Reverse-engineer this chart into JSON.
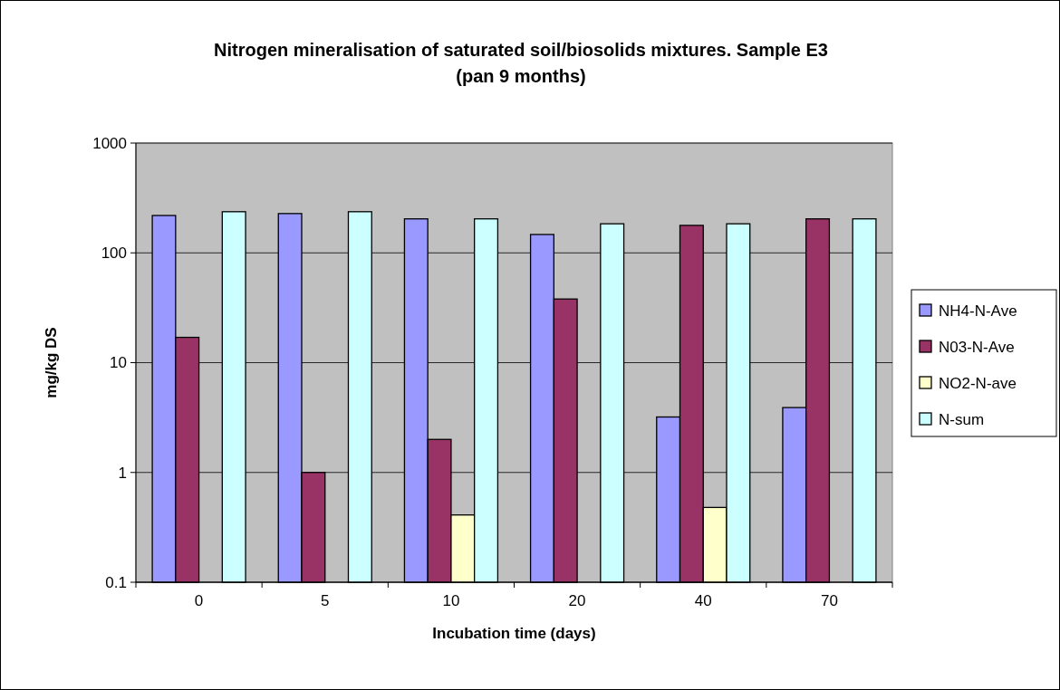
{
  "chart_data": {
    "type": "bar",
    "title": "Nitrogen mineralisation of saturated soil/biosolids mixtures. Sample E3 (pan 9 months)",
    "xlabel": "Incubation time (days)",
    "ylabel": "mg/kg DS",
    "categories": [
      "0",
      "5",
      "10",
      "20",
      "40",
      "70"
    ],
    "series": [
      {
        "name": "NH4-N-Ave",
        "color": "#9999ff",
        "values": [
          219,
          228,
          204,
          147,
          3.2,
          3.9
        ]
      },
      {
        "name": "N03-N-Ave",
        "color": "#993366",
        "values": [
          17,
          1.0,
          2.0,
          38,
          178,
          204
        ]
      },
      {
        "name": "NO2-N-ave",
        "color": "#ffffcc",
        "values": [
          null,
          null,
          0.41,
          null,
          0.48,
          null
        ]
      },
      {
        "name": "N-sum",
        "color": "#ccffff",
        "values": [
          237,
          237,
          204,
          184,
          184,
          204
        ]
      }
    ],
    "log": true,
    "ylim": [
      0.1,
      1000
    ],
    "yticks": [
      0.1,
      1,
      10,
      100,
      1000
    ],
    "grid": "y",
    "legend": "right"
  }
}
